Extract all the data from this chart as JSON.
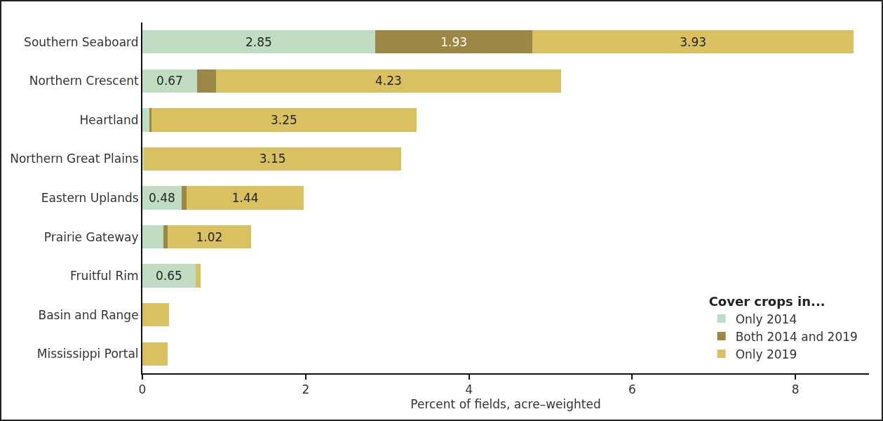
{
  "chart_data": {
    "type": "bar",
    "orientation": "horizontal",
    "stacked": true,
    "categories": [
      "Southern Seaboard",
      "Northern Crescent",
      "Heartland",
      "Northern Great Plains",
      "Eastern Uplands",
      "Prairie Gateway",
      "Fruitful Rim",
      "Basin and Range",
      "Mississippi Portal"
    ],
    "series": [
      {
        "name": "Only 2014",
        "color": "#c0dcc2",
        "values": [
          2.85,
          0.67,
          0.09,
          0.02,
          0.48,
          0.26,
          0.65,
          0,
          0
        ],
        "value_labels": [
          "2.85",
          "0.67",
          null,
          null,
          "0.48",
          null,
          "0.65",
          null,
          null
        ]
      },
      {
        "name": "Both 2014 and 2019",
        "color": "#9c8744",
        "values": [
          1.93,
          0.23,
          0.02,
          0,
          0.06,
          0.05,
          0,
          0,
          0
        ],
        "value_labels": [
          "1.93",
          null,
          null,
          null,
          null,
          null,
          null,
          null,
          null
        ]
      },
      {
        "name": "Only 2019",
        "color": "#d9c162",
        "values": [
          3.93,
          4.23,
          3.25,
          3.15,
          1.44,
          1.02,
          0.06,
          0.33,
          0.31
        ],
        "value_labels": [
          "3.93",
          "4.23",
          "3.25",
          "3.15",
          "1.44",
          "1.02",
          null,
          null,
          null
        ]
      }
    ],
    "xlabel": "Percent of fields, acre–weighted",
    "legend_title": "Cover crops in...",
    "xlim": [
      0,
      8.9
    ],
    "xticks": [
      0,
      2,
      4,
      6,
      8
    ],
    "grid": false,
    "legend": "bottom right"
  }
}
